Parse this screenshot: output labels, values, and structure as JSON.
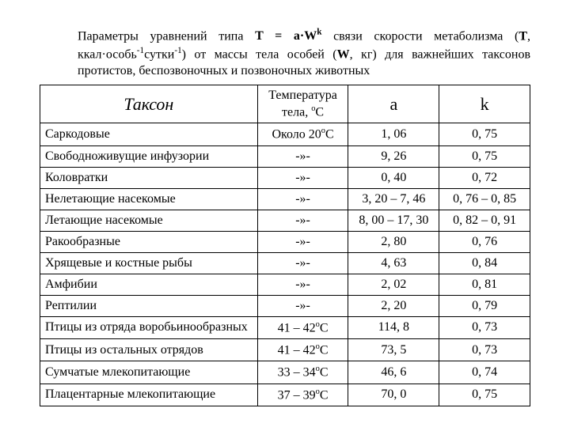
{
  "caption": {
    "line1_pre": "Параметры уравнений типа ",
    "eq": "T = a·W",
    "eq_sup": "k",
    "line1_post": " связи скорости метаболизма (",
    "T": "T",
    "comma1": ", ккал·особь",
    "sup_m1a": "-1",
    "dotunit": "сутки",
    "sup_m1b": "-1",
    "post2": ") от массы тела особей (",
    "W": "W",
    "post3": ", кг) для важнейших таксонов протистов, беспозвоночных и позвоночных животных"
  },
  "headers": {
    "taxon": "Таксон",
    "temp_l1": "Температура",
    "temp_l2_pre": "тела, ",
    "temp_l2_sup": "o",
    "temp_l2_post": "C",
    "a": "a",
    "k": "k"
  },
  "rows": [
    {
      "taxon": "Саркодовые",
      "temp_pre": "Около 20",
      "temp_sup": "o",
      "temp_post": "C",
      "a": "1, 06",
      "k": "0, 75"
    },
    {
      "taxon": "Свободноживущие инфузории",
      "temp_pre": "-»-",
      "temp_sup": "",
      "temp_post": "",
      "a": "9, 26",
      "k": "0, 75"
    },
    {
      "taxon": "Коловратки",
      "temp_pre": "-»-",
      "temp_sup": "",
      "temp_post": "",
      "a": "0, 40",
      "k": "0, 72"
    },
    {
      "taxon": "Нелетающие насекомые",
      "temp_pre": "-»-",
      "temp_sup": "",
      "temp_post": "",
      "a": "3, 20 – 7, 46",
      "k": "0, 76 – 0, 85"
    },
    {
      "taxon": "Летающие насекомые",
      "temp_pre": "-»-",
      "temp_sup": "",
      "temp_post": "",
      "a": "8, 00 – 17, 30",
      "k": "0, 82 – 0, 91"
    },
    {
      "taxon": "Ракообразные",
      "temp_pre": "-»-",
      "temp_sup": "",
      "temp_post": "",
      "a": "2, 80",
      "k": "0, 76"
    },
    {
      "taxon": "Хрящевые и костные рыбы",
      "temp_pre": "-»-",
      "temp_sup": "",
      "temp_post": "",
      "a": "4, 63",
      "k": "0, 84"
    },
    {
      "taxon": "Амфибии",
      "temp_pre": "-»-",
      "temp_sup": "",
      "temp_post": "",
      "a": "2, 02",
      "k": "0, 81"
    },
    {
      "taxon": "Рептилии",
      "temp_pre": "-»-",
      "temp_sup": "",
      "temp_post": "",
      "a": "2, 20",
      "k": "0, 79"
    },
    {
      "taxon": "Птицы из отряда воробьинообразных",
      "temp_pre": "41 – 42",
      "temp_sup": "o",
      "temp_post": "C",
      "a": "114, 8",
      "k": "0, 73"
    },
    {
      "taxon": "Птицы из остальных отрядов",
      "temp_pre": "41 – 42",
      "temp_sup": "o",
      "temp_post": "C",
      "a": "73, 5",
      "k": "0, 73"
    },
    {
      "taxon": "Сумчатые млекопитающие",
      "temp_pre": "33 – 34",
      "temp_sup": "o",
      "temp_post": "C",
      "a": "46, 6",
      "k": "0, 74"
    },
    {
      "taxon": "Плацентарные млекопитающие",
      "temp_pre": "37 – 39",
      "temp_sup": "o",
      "temp_post": "C",
      "a": "70, 0",
      "k": "0, 75"
    }
  ],
  "style": {
    "font_family": "Times New Roman",
    "text_color": "#000000",
    "background_color": "#ffffff",
    "border_color": "#000000",
    "caption_fontsize_pt": 12,
    "header_taxon_fontsize_pt": 16,
    "header_ak_fontsize_pt": 16,
    "cell_fontsize_pt": 12,
    "col_widths_pct": [
      46,
      18,
      18,
      18
    ]
  }
}
